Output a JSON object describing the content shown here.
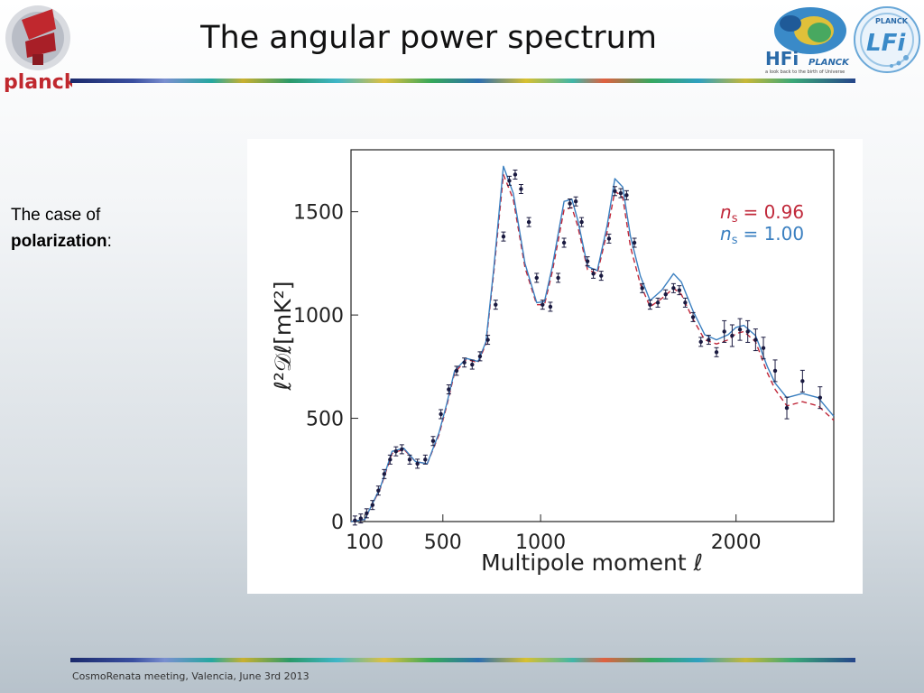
{
  "slide": {
    "title": "The angular power spectrum",
    "logo_left_text": "planck",
    "side_text_line1": "The case of",
    "side_text_bold": "polarization",
    "side_text_suffix": ":",
    "footer": "CosmoRenata meeting, Valencia, June 3rd 2013",
    "hfi_logo_text": "HFi",
    "hfi_logo_sub": "PLANCK",
    "hfi_tagline": "a look back to the birth of Universe",
    "lfi_logo_top": "PLANCK",
    "lfi_logo_text": "LFi"
  },
  "colors": {
    "planck_red": "#c0282e",
    "data_points": "#1a1a40",
    "series_096": "#c0283a",
    "series_100": "#3a7fc0"
  },
  "chart_data": {
    "type": "line",
    "xlabel": "Multipole moment ℓ",
    "ylabel": "ℓ²𝒟ℓ[mK²]",
    "xlim": [
      30,
      2500
    ],
    "ylim": [
      0,
      1800
    ],
    "xticks": [
      100,
      500,
      1000,
      2000
    ],
    "yticks": [
      0,
      500,
      1000,
      1500
    ],
    "legend_position": "top-right",
    "series": [
      {
        "name": "n_s = 0.96",
        "legend_prefix": "n",
        "legend_sub": "s",
        "legend_value": "= 0.96",
        "style": "dashed",
        "x": [
          30,
          100,
          180,
          240,
          300,
          360,
          420,
          480,
          520,
          560,
          620,
          680,
          720,
          760,
          810,
          860,
          920,
          980,
          1020,
          1060,
          1120,
          1160,
          1190,
          1240,
          1290,
          1340,
          1380,
          1420,
          1460,
          1510,
          1560,
          1620,
          1680,
          1720,
          1780,
          1840,
          1900,
          1960,
          2000,
          2040,
          2100,
          2160,
          2200,
          2260,
          2340,
          2420,
          2500
        ],
        "y": [
          0,
          10,
          160,
          330,
          350,
          290,
          280,
          420,
          560,
          720,
          785,
          770,
          860,
          1200,
          1680,
          1560,
          1230,
          1050,
          1050,
          1210,
          1510,
          1520,
          1430,
          1220,
          1200,
          1400,
          1600,
          1570,
          1330,
          1150,
          1040,
          1080,
          1130,
          1100,
          980,
          880,
          860,
          880,
          910,
          920,
          870,
          720,
          640,
          560,
          580,
          560,
          490
        ]
      },
      {
        "name": "n_s = 1.00",
        "legend_prefix": "n",
        "legend_sub": "s",
        "legend_value": "= 1.00",
        "style": "solid",
        "x": [
          30,
          100,
          180,
          240,
          300,
          360,
          420,
          480,
          520,
          560,
          620,
          680,
          720,
          760,
          810,
          860,
          920,
          980,
          1020,
          1060,
          1120,
          1160,
          1190,
          1240,
          1290,
          1340,
          1380,
          1420,
          1460,
          1510,
          1560,
          1620,
          1680,
          1720,
          1780,
          1840,
          1900,
          1960,
          2000,
          2040,
          2100,
          2160,
          2200,
          2260,
          2340,
          2420,
          2500
        ],
        "y": [
          0,
          10,
          165,
          340,
          355,
          290,
          280,
          430,
          570,
          730,
          790,
          775,
          870,
          1220,
          1720,
          1590,
          1250,
          1060,
          1065,
          1235,
          1550,
          1560,
          1460,
          1235,
          1215,
          1430,
          1660,
          1620,
          1380,
          1190,
          1070,
          1120,
          1200,
          1160,
          1020,
          905,
          880,
          905,
          940,
          950,
          900,
          750,
          670,
          600,
          620,
          600,
          510
        ]
      }
    ],
    "data_points": {
      "name": "data",
      "x": [
        50,
        80,
        110,
        140,
        170,
        200,
        230,
        260,
        290,
        330,
        370,
        410,
        450,
        490,
        530,
        570,
        610,
        650,
        690,
        730,
        770,
        810,
        840,
        870,
        900,
        940,
        980,
        1010,
        1050,
        1090,
        1120,
        1150,
        1180,
        1210,
        1240,
        1270,
        1310,
        1350,
        1380,
        1410,
        1440,
        1480,
        1520,
        1560,
        1600,
        1640,
        1680,
        1710,
        1740,
        1780,
        1820,
        1860,
        1900,
        1940,
        1980,
        2020,
        2060,
        2100,
        2140,
        2200,
        2260,
        2340,
        2430
      ],
      "y": [
        5,
        15,
        40,
        80,
        150,
        230,
        300,
        340,
        350,
        300,
        280,
        300,
        390,
        520,
        640,
        730,
        770,
        760,
        800,
        880,
        1050,
        1380,
        1650,
        1680,
        1610,
        1450,
        1180,
        1050,
        1040,
        1180,
        1350,
        1540,
        1550,
        1450,
        1260,
        1200,
        1190,
        1370,
        1600,
        1590,
        1580,
        1350,
        1130,
        1050,
        1060,
        1100,
        1130,
        1120,
        1060,
        990,
        870,
        880,
        820,
        920,
        900,
        930,
        920,
        880,
        840,
        730,
        550,
        680,
        600
      ]
    }
  }
}
